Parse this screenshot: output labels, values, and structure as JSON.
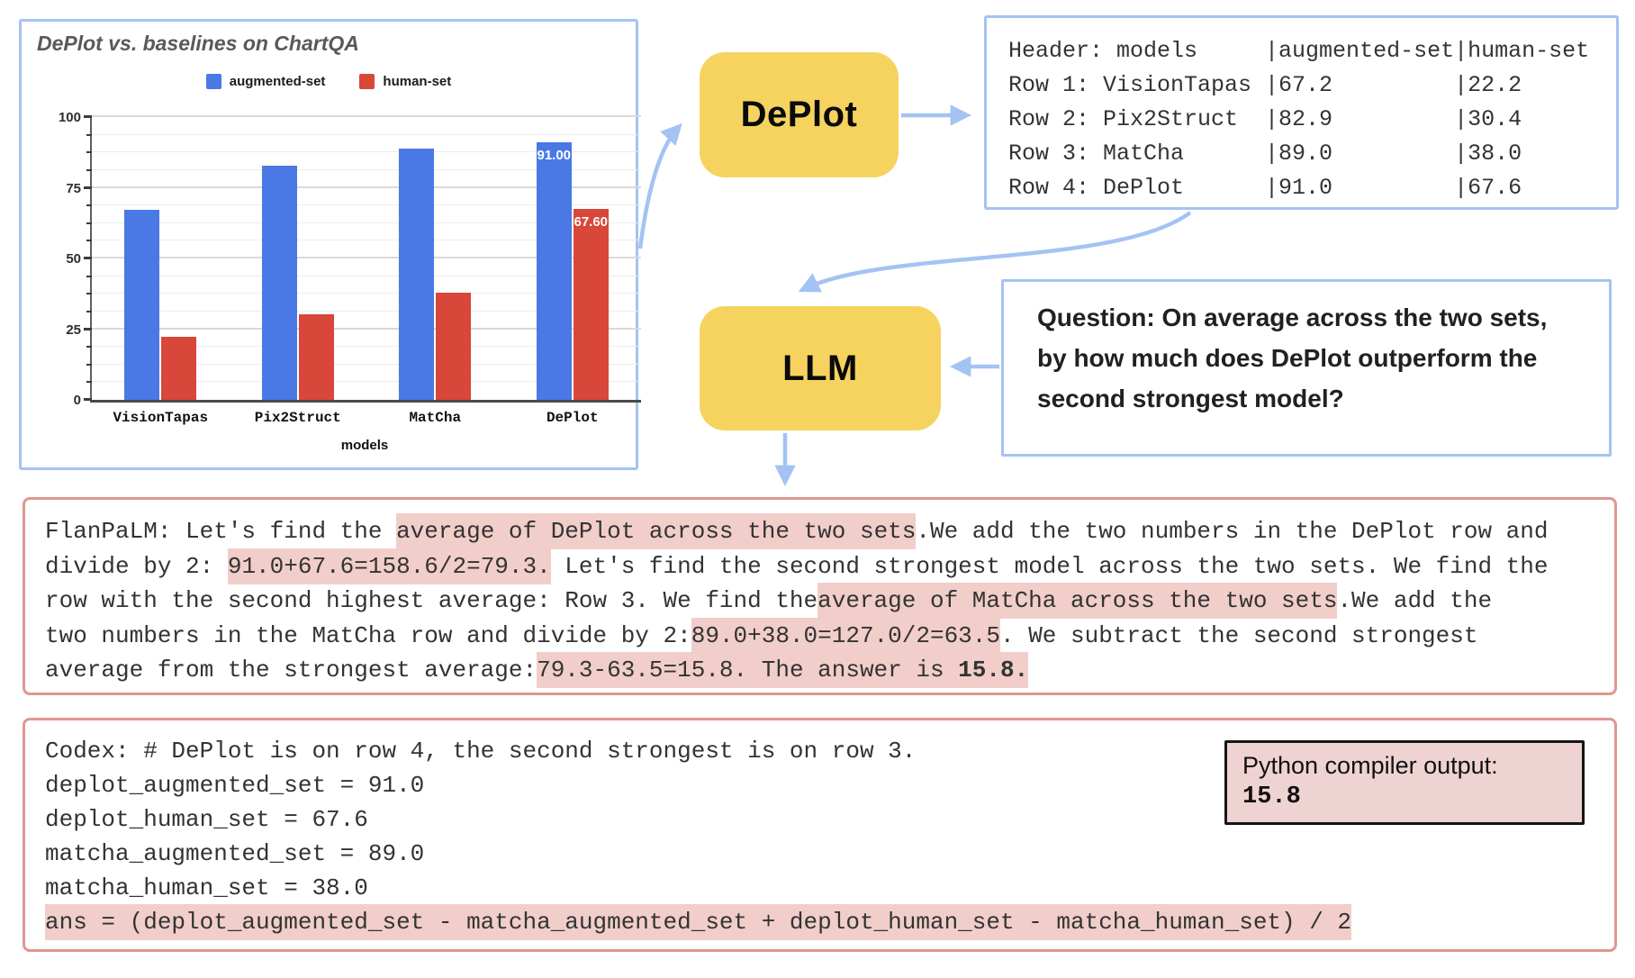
{
  "colors": {
    "bar_blue": "#4a79e5",
    "bar_red": "#d8473a",
    "box_border_blue": "#a6c3f1",
    "box_border_pink": "#e09790",
    "highlight_pink": "#f1cec9",
    "yellow_box": "#f5d35e",
    "arrow_blue": "#a4c2f4",
    "python_box_bg": "#eed3d2"
  },
  "chart_data": {
    "type": "bar",
    "title": "DePlot vs. baselines on ChartQA",
    "categories": [
      "VisionTapas",
      "Pix2Struct",
      "MatCha",
      "DePlot"
    ],
    "series": [
      {
        "name": "augmented-set",
        "color": "#4a79e5",
        "values": [
          67.2,
          82.9,
          89.0,
          91.0
        ],
        "bar_labels": [
          null,
          null,
          null,
          "91.00"
        ]
      },
      {
        "name": "human-set",
        "color": "#d8473a",
        "values": [
          22.2,
          30.4,
          38.0,
          67.6
        ],
        "bar_labels": [
          null,
          null,
          null,
          "67.60"
        ]
      }
    ],
    "xlabel": "models",
    "ylabel": "",
    "ylim": [
      0,
      100
    ],
    "y_ticks": [
      0,
      25,
      50,
      75,
      100
    ],
    "minor_grid_step": 6.25,
    "grid": true,
    "legend_position": "top"
  },
  "pipeline": {
    "deplot_label": "DePlot",
    "llm_label": "LLM"
  },
  "table_output": {
    "lines": [
      "Header: models     |augmented-set|human-set",
      "Row 1: VisionTapas |67.2         |22.2",
      "Row 2: Pix2Struct  |82.9         |30.4",
      "Row 3: MatCha      |89.0         |38.0",
      "Row 4: DePlot      |91.0         |67.6"
    ]
  },
  "question": {
    "lines": [
      "Question: On average across the two sets,",
      "by how much does DePlot outperform the",
      "second strongest model?"
    ]
  },
  "flanpalm": {
    "lines": [
      [
        {
          "t": "FlanPaLM: Let's find the "
        },
        {
          "t": "average of DePlot across the two sets",
          "s": "h"
        },
        {
          "t": ".We add the two numbers in the DePlot row and"
        }
      ],
      [
        {
          "t": "divide by 2: "
        },
        {
          "t": "91.0+67.6=158.6/2=79.3.",
          "s": "h"
        },
        {
          "t": " Let's find the second strongest model across the two sets. We find the"
        }
      ],
      [
        {
          "t": "row with the second highest average: Row 3. We find the"
        },
        {
          "t": "average of MatCha across the two sets",
          "s": "h"
        },
        {
          "t": ".We add the"
        }
      ],
      [
        {
          "t": "two numbers in the MatCha row and divide by 2:"
        },
        {
          "t": "89.0+38.0=127.0/2=63.5",
          "s": "h"
        },
        {
          "t": ". We subtract the second strongest"
        }
      ],
      [
        {
          "t": "average from the strongest average:"
        },
        {
          "t": "79.3-63.5=15.8. The answer is ",
          "s": "h"
        },
        {
          "t": "15.8.",
          "s": "hb"
        }
      ]
    ]
  },
  "codex": {
    "lines": [
      [
        {
          "t": "Codex: # DePlot is on row 4, the second strongest is on row 3."
        }
      ],
      [
        {
          "t": "deplot_augmented_set = 91.0"
        }
      ],
      [
        {
          "t": "deplot_human_set = 67.6"
        }
      ],
      [
        {
          "t": "matcha_augmented_set = 89.0"
        }
      ],
      [
        {
          "t": "matcha_human_set = 38.0"
        }
      ],
      [
        {
          "t": "ans = (deplot_augmented_set - matcha_augmented_set + deplot_human_set - matcha_human_set) / 2",
          "s": "h"
        }
      ]
    ]
  },
  "python_output": {
    "label": "Python compiler output:",
    "value": "15.8"
  }
}
